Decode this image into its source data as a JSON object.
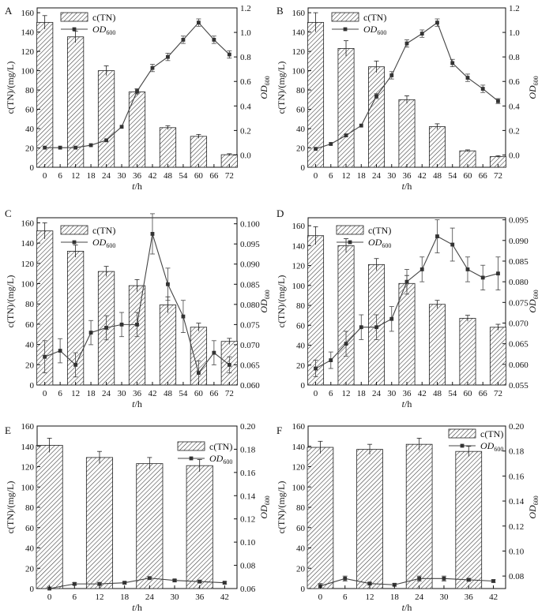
{
  "chart_data": [
    {
      "panel": "A",
      "type": "bar+line",
      "legend": {
        "bar_label": "c(TN)",
        "line_label_main": "OD",
        "line_label_sub": "600"
      },
      "xlabel": "t/h",
      "ylabel_left": "c(TN)/(mg/L)",
      "ylabel_right_main": "OD",
      "ylabel_right_sub": "600",
      "x_ticks": [
        "0",
        "6",
        "12",
        "18",
        "24",
        "30",
        "36",
        "42",
        "48",
        "54",
        "60",
        "66",
        "72"
      ],
      "y_left_ticks": [
        "0",
        "20",
        "40",
        "60",
        "80",
        "100",
        "120",
        "140",
        "160"
      ],
      "y_right_ticks": [
        "0.0",
        "0.2",
        "0.4",
        "0.6",
        "0.8",
        "1.0",
        "1.2"
      ],
      "y_left_lim": [
        0,
        165
      ],
      "y_right_lim": [
        -0.1,
        1.2
      ],
      "bars": {
        "x": [
          0,
          12,
          24,
          36,
          48,
          60,
          72
        ],
        "values": [
          150,
          135,
          100,
          78,
          41,
          32,
          13
        ],
        "errors": [
          7,
          6,
          5,
          3,
          2,
          2,
          1
        ]
      },
      "line": {
        "x": [
          0,
          6,
          12,
          18,
          24,
          30,
          36,
          42,
          48,
          54,
          60,
          66,
          72
        ],
        "values": [
          0.06,
          0.06,
          0.06,
          0.08,
          0.12,
          0.23,
          0.52,
          0.71,
          0.8,
          0.94,
          1.08,
          0.94,
          0.82
        ],
        "errors": [
          0,
          0,
          0,
          0,
          0,
          0,
          0.02,
          0.03,
          0.03,
          0.03,
          0.03,
          0.03,
          0.03
        ]
      }
    },
    {
      "panel": "B",
      "type": "bar+line",
      "legend": {
        "bar_label": "c(TN)",
        "line_label_main": "OD",
        "line_label_sub": "600"
      },
      "xlabel": "t/h",
      "ylabel_left": "c(TN)/(mg/L)",
      "ylabel_right_main": "OD",
      "ylabel_right_sub": "600",
      "x_ticks": [
        "0",
        "6",
        "12",
        "18",
        "24",
        "30",
        "36",
        "42",
        "48",
        "54",
        "60",
        "66",
        "72"
      ],
      "y_left_ticks": [
        "0",
        "20",
        "40",
        "60",
        "80",
        "100",
        "120",
        "140",
        "160"
      ],
      "y_right_ticks": [
        "0.0",
        "0.2",
        "0.4",
        "0.6",
        "0.8",
        "1.0",
        "1.2"
      ],
      "y_left_lim": [
        0,
        165
      ],
      "y_right_lim": [
        -0.1,
        1.2
      ],
      "bars": {
        "x": [
          0,
          12,
          24,
          36,
          48,
          60,
          72
        ],
        "values": [
          150,
          123,
          104,
          70,
          42,
          17,
          11
        ],
        "errors": [
          10,
          8,
          6,
          4,
          3,
          1,
          1
        ]
      },
      "line": {
        "x": [
          0,
          6,
          12,
          18,
          24,
          30,
          36,
          42,
          48,
          54,
          60,
          66,
          72
        ],
        "values": [
          0.05,
          0.09,
          0.16,
          0.24,
          0.48,
          0.65,
          0.91,
          0.99,
          1.08,
          0.75,
          0.63,
          0.54,
          0.44
        ],
        "errors": [
          0,
          0,
          0,
          0,
          0.02,
          0.03,
          0.03,
          0.03,
          0.03,
          0.03,
          0.03,
          0.03,
          0.02
        ]
      }
    },
    {
      "panel": "C",
      "type": "bar+line",
      "legend": {
        "bar_label": "c(TN)",
        "line_label_main": "OD",
        "line_label_sub": "600"
      },
      "xlabel": "t/h",
      "ylabel_left": "c(TN)/(mg/L)",
      "ylabel_right_main": "OD",
      "ylabel_right_sub": "600",
      "x_ticks": [
        "0",
        "6",
        "12",
        "18",
        "24",
        "30",
        "36",
        "42",
        "48",
        "54",
        "60",
        "66",
        "72"
      ],
      "y_left_ticks": [
        "0",
        "20",
        "40",
        "60",
        "80",
        "100",
        "120",
        "140",
        "160"
      ],
      "y_right_ticks": [
        "0.060",
        "0.065",
        "0.070",
        "0.075",
        "0.080",
        "0.085",
        "0.090",
        "0.095",
        "0.100"
      ],
      "y_left_lim": [
        0,
        165
      ],
      "y_right_lim": [
        0.06,
        0.1015
      ],
      "bars": {
        "x": [
          0,
          12,
          24,
          36,
          48,
          60,
          72
        ],
        "values": [
          152,
          132,
          112,
          98,
          79,
          57,
          43
        ],
        "errors": [
          8,
          6,
          5,
          6,
          8,
          4,
          3
        ]
      },
      "line": {
        "x": [
          0,
          6,
          12,
          18,
          24,
          30,
          36,
          42,
          48,
          54,
          60,
          66,
          72
        ],
        "values": [
          0.067,
          0.0685,
          0.065,
          0.073,
          0.0742,
          0.075,
          0.075,
          0.0975,
          0.085,
          0.077,
          0.063,
          0.068,
          0.065
        ],
        "errors": [
          0.004,
          0.003,
          0.003,
          0.003,
          0.003,
          0.003,
          0.003,
          0.005,
          0.004,
          0.004,
          0.003,
          0.003,
          0.002
        ]
      }
    },
    {
      "panel": "D",
      "type": "bar+line",
      "legend": {
        "bar_label": "c(TN)",
        "line_label_main": "OD",
        "line_label_sub": "600"
      },
      "xlabel": "t/h",
      "ylabel_left": "c(TN)/(mg/L)",
      "ylabel_right_main": "OD",
      "ylabel_right_sub": "600",
      "x_ticks": [
        "0",
        "6",
        "12",
        "18",
        "24",
        "30",
        "36",
        "42",
        "48",
        "54",
        "60",
        "66",
        "72"
      ],
      "y_left_ticks": [
        "0",
        "20",
        "40",
        "60",
        "80",
        "100",
        "120",
        "140",
        "160"
      ],
      "y_right_ticks": [
        "0.055",
        "0.060",
        "0.065",
        "0.070",
        "0.075",
        "0.080",
        "0.085",
        "0.090",
        "0.095"
      ],
      "y_left_lim": [
        0,
        168
      ],
      "y_right_lim": [
        0.055,
        0.0955
      ],
      "bars": {
        "x": [
          0,
          12,
          24,
          36,
          48,
          60,
          72
        ],
        "values": [
          150,
          140,
          121,
          102,
          81,
          67,
          58
        ],
        "errors": [
          9,
          7,
          6,
          8,
          4,
          3,
          3
        ]
      },
      "line": {
        "x": [
          0,
          6,
          12,
          18,
          24,
          30,
          36,
          42,
          48,
          54,
          60,
          66,
          72
        ],
        "values": [
          0.059,
          0.061,
          0.065,
          0.069,
          0.069,
          0.071,
          0.08,
          0.083,
          0.091,
          0.089,
          0.083,
          0.081,
          0.082
        ],
        "errors": [
          0.002,
          0.002,
          0.003,
          0.003,
          0.003,
          0.003,
          0.003,
          0.003,
          0.004,
          0.004,
          0.003,
          0.003,
          0.004
        ]
      }
    },
    {
      "panel": "E",
      "type": "bar+line",
      "legend": {
        "bar_label": "c(TN)",
        "line_label_main": "OD",
        "line_label_sub": "600"
      },
      "xlabel": "t/h",
      "ylabel_left": "c(TN)/(mg/L)",
      "ylabel_right_main": "OD",
      "ylabel_right_sub": "600",
      "x_ticks": [
        "0",
        "6",
        "12",
        "18",
        "24",
        "30",
        "36",
        "42"
      ],
      "y_left_ticks": [
        "0",
        "20",
        "40",
        "60",
        "80",
        "100",
        "120",
        "140",
        "160"
      ],
      "y_right_ticks": [
        "0.06",
        "0.08",
        "0.10",
        "0.12",
        "0.14",
        "0.16",
        "0.18",
        "0.20"
      ],
      "y_left_lim": [
        0,
        160
      ],
      "y_right_lim": [
        0.06,
        0.2
      ],
      "bars": {
        "x": [
          0,
          12,
          24,
          36
        ],
        "values": [
          141,
          129,
          123,
          121
        ],
        "errors": [
          7,
          6,
          6,
          6
        ]
      },
      "line": {
        "x": [
          0,
          6,
          12,
          18,
          24,
          30,
          36,
          42
        ],
        "values": [
          0.06,
          0.064,
          0.064,
          0.065,
          0.069,
          0.067,
          0.066,
          0.065
        ],
        "errors": [
          0,
          0.001,
          0.001,
          0.001,
          0.001,
          0.001,
          0.001,
          0.001
        ]
      }
    },
    {
      "panel": "F",
      "type": "bar+line",
      "legend": {
        "bar_label": "c(TN)",
        "line_label_main": "OD",
        "line_label_sub": "600"
      },
      "xlabel": "t/h",
      "ylabel_left": "c(TN)/(mg/L)",
      "ylabel_right_main": "OD",
      "ylabel_right_sub": "600",
      "x_ticks": [
        "0",
        "6",
        "12",
        "18",
        "24",
        "30",
        "36",
        "42"
      ],
      "y_left_ticks": [
        "0",
        "20",
        "40",
        "60",
        "80",
        "100",
        "120",
        "140",
        "160"
      ],
      "y_right_ticks": [
        "0.08",
        "0.10",
        "0.12",
        "0.14",
        "0.16",
        "0.18",
        "0.20"
      ],
      "y_left_lim": [
        0,
        160
      ],
      "y_right_lim": [
        0.07,
        0.2
      ],
      "bars": {
        "x": [
          0,
          12,
          24,
          36
        ],
        "values": [
          139,
          137,
          142,
          135
        ],
        "errors": [
          6,
          5,
          6,
          5
        ]
      },
      "line": {
        "x": [
          0,
          6,
          12,
          18,
          24,
          30,
          36,
          42
        ],
        "values": [
          0.072,
          0.078,
          0.074,
          0.073,
          0.078,
          0.078,
          0.077,
          0.076
        ],
        "errors": [
          0.002,
          0.002,
          0.001,
          0.001,
          0.002,
          0.002,
          0.001,
          0.001
        ]
      }
    }
  ]
}
